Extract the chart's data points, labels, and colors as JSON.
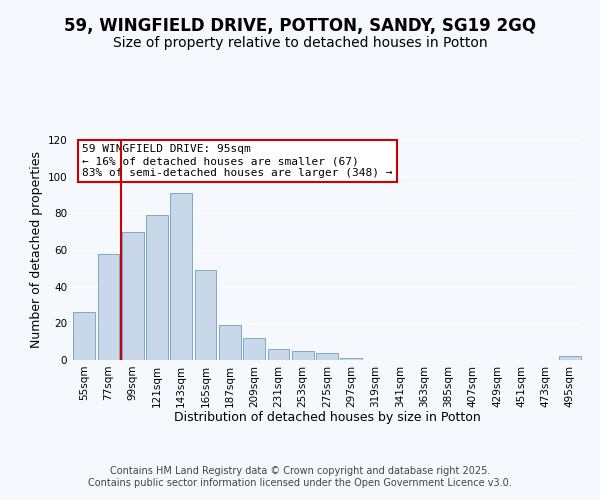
{
  "title": "59, WINGFIELD DRIVE, POTTON, SANDY, SG19 2GQ",
  "subtitle": "Size of property relative to detached houses in Potton",
  "xlabel": "Distribution of detached houses by size in Potton",
  "ylabel": "Number of detached properties",
  "bar_color": "#c8d8e8",
  "bar_edge_color": "#7aaac8",
  "categories": [
    "55sqm",
    "77sqm",
    "99sqm",
    "121sqm",
    "143sqm",
    "165sqm",
    "187sqm",
    "209sqm",
    "231sqm",
    "253sqm",
    "275sqm",
    "297sqm",
    "319sqm",
    "341sqm",
    "363sqm",
    "385sqm",
    "407sqm",
    "429sqm",
    "451sqm",
    "473sqm",
    "495sqm"
  ],
  "values": [
    26,
    58,
    70,
    79,
    91,
    49,
    19,
    12,
    6,
    5,
    4,
    1,
    0,
    0,
    0,
    0,
    0,
    0,
    0,
    0,
    2
  ],
  "ylim": [
    0,
    120
  ],
  "yticks": [
    0,
    20,
    40,
    60,
    80,
    100,
    120
  ],
  "marker_index": 2,
  "marker_color": "#cc0000",
  "annotation_title": "59 WINGFIELD DRIVE: 95sqm",
  "annotation_line1": "← 16% of detached houses are smaller (67)",
  "annotation_line2": "83% of semi-detached houses are larger (348) →",
  "annotation_box_color": "#ffffff",
  "annotation_box_edge": "#cc0000",
  "footer1": "Contains HM Land Registry data © Crown copyright and database right 2025.",
  "footer2": "Contains public sector information licensed under the Open Government Licence v3.0.",
  "background_color": "#f5f8fc",
  "grid_color": "#ffffff",
  "title_fontsize": 12,
  "subtitle_fontsize": 10,
  "tick_fontsize": 7.5,
  "label_fontsize": 9,
  "footer_fontsize": 7
}
